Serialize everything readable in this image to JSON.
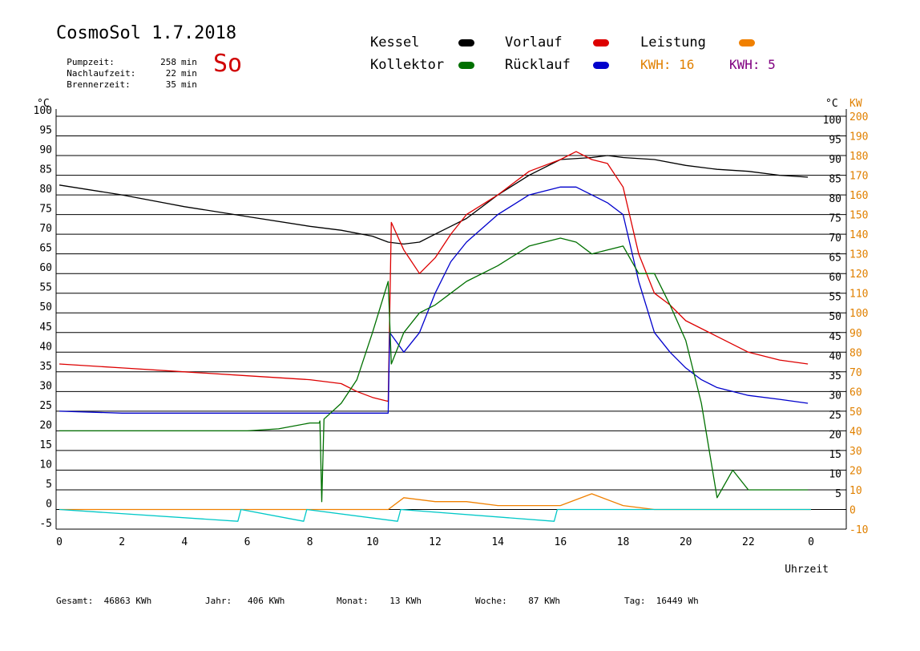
{
  "header": {
    "title": "CosmoSol 1.7.2018",
    "day": "So",
    "stats": [
      {
        "label": "Pumpzeit:",
        "value": "258",
        "unit": "min"
      },
      {
        "label": "Nachlaufzeit:",
        "value": "22",
        "unit": "min"
      },
      {
        "label": "Brennerzeit:",
        "value": "35",
        "unit": "min"
      }
    ]
  },
  "legend": {
    "kessel": {
      "label": "Kessel",
      "color": "#000000"
    },
    "vorlauf": {
      "label": "Vorlauf",
      "color": "#dd0000"
    },
    "leistung": {
      "label": "Leistung",
      "color": "#f08000"
    },
    "kollektor": {
      "label": "Kollektor",
      "color": "#007000"
    },
    "ruecklauf": {
      "label": "Rücklauf",
      "color": "#0000cc"
    },
    "kwh1": {
      "label": "KWH: 16",
      "color": "#e08000"
    },
    "kwh2": {
      "label": "KWH: 5",
      "color": "#800080"
    }
  },
  "footer": [
    {
      "label": "Gesamt:",
      "value": "46863 KWh"
    },
    {
      "label": "Jahr:",
      "value": "406 KWh"
    },
    {
      "label": "Monat:",
      "value": "13 KWh"
    },
    {
      "label": "Woche:",
      "value": "87 KWh"
    },
    {
      "label": "Tag:",
      "value": "16449 Wh"
    }
  ],
  "chart_data": {
    "type": "line",
    "title": "CosmoSol 1.7.2018",
    "xlabel": "Uhrzeit",
    "ylabel_left": "°C",
    "ylabel_right_temp": "°C",
    "ylabel_right_power": "KW",
    "xlim": [
      0,
      24
    ],
    "ylim": [
      -5,
      100
    ],
    "y2lim": [
      -10,
      200
    ],
    "x_ticks": [
      "0",
      "2",
      "4",
      "6",
      "8",
      "10",
      "12",
      "14",
      "16",
      "18",
      "20",
      "22",
      "0"
    ],
    "y_ticks_left": [
      "-5",
      "0",
      "5",
      "10",
      "15",
      "20",
      "25",
      "30",
      "35",
      "40",
      "45",
      "50",
      "55",
      "60",
      "65",
      "70",
      "75",
      "80",
      "85",
      "90",
      "95",
      "100"
    ],
    "y_ticks_right_temp": [
      "5",
      "10",
      "15",
      "20",
      "25",
      "30",
      "35",
      "40",
      "45",
      "50",
      "55",
      "60",
      "65",
      "70",
      "75",
      "80",
      "85",
      "90",
      "95",
      "100"
    ],
    "y_ticks_right_power": [
      "-10",
      "0",
      "10",
      "20",
      "30",
      "40",
      "50",
      "60",
      "70",
      "80",
      "90",
      "100",
      "110",
      "120",
      "130",
      "140",
      "150",
      "160",
      "170",
      "180",
      "190",
      "200"
    ],
    "grid": true,
    "series": [
      {
        "name": "Kessel",
        "color": "#000000",
        "x": [
          0,
          2,
          4,
          6,
          8,
          9,
          10,
          10.5,
          11,
          11.5,
          12,
          12.5,
          13,
          14,
          15,
          16,
          17,
          17.5,
          18,
          19,
          20,
          21,
          22,
          23,
          23.9
        ],
        "y": [
          82.5,
          80,
          77,
          74.5,
          72,
          71,
          69.5,
          68,
          67.5,
          68,
          70,
          72,
          74,
          80,
          85,
          89,
          89.5,
          90,
          89.5,
          89,
          87.5,
          86.5,
          86,
          85,
          84.5
        ]
      },
      {
        "name": "Vorlauf",
        "color": "#dd0000",
        "x": [
          0,
          2,
          4,
          6,
          8,
          9,
          9.5,
          10,
          10.5,
          10.6,
          11,
          11.5,
          12,
          12.5,
          13,
          14,
          15,
          16,
          16.5,
          17,
          17.5,
          18,
          18.5,
          19,
          19.5,
          20,
          21,
          22,
          23,
          23.9
        ],
        "y": [
          37,
          36,
          35,
          34,
          33,
          32,
          30,
          28.5,
          27.5,
          73,
          66,
          60,
          64,
          70,
          75,
          80,
          86,
          89,
          91,
          89,
          88,
          82,
          65,
          55,
          52,
          48,
          44,
          40,
          38,
          37
        ]
      },
      {
        "name": "Rücklauf",
        "color": "#0000cc",
        "x": [
          0,
          2,
          4,
          6,
          8,
          9,
          10,
          10.5,
          10.55,
          11,
          11.5,
          12,
          12.5,
          13,
          14,
          15,
          16,
          16.5,
          17,
          17.5,
          18,
          18.5,
          19,
          19.5,
          20,
          20.5,
          21,
          22,
          23,
          23.9
        ],
        "y": [
          25,
          24.5,
          24.5,
          24.5,
          24.5,
          24.5,
          24.5,
          24.5,
          45,
          40,
          45,
          55,
          63,
          68,
          75,
          80,
          82,
          82,
          80,
          78,
          75,
          58,
          45,
          40,
          36,
          33,
          31,
          29,
          28,
          27
        ]
      },
      {
        "name": "Kollektor",
        "color": "#007000",
        "x": [
          0,
          2,
          4,
          6,
          7,
          8,
          8.3,
          8.32,
          8.38,
          8.45,
          9,
          9.5,
          10,
          10.5,
          10.6,
          11,
          11.5,
          12,
          12.5,
          13,
          14,
          15,
          16,
          16.5,
          17,
          17.5,
          18,
          18.5,
          19,
          19.5,
          20,
          20.5,
          21,
          21.5,
          22,
          23,
          23.9
        ],
        "y": [
          20,
          20,
          20,
          20,
          20.5,
          22,
          22,
          22.5,
          2,
          23,
          27,
          33,
          45,
          58,
          37,
          45,
          50,
          52,
          55,
          58,
          62,
          67,
          69,
          68,
          65,
          66,
          67,
          60,
          60,
          52,
          43,
          27,
          3,
          10,
          5,
          5,
          5
        ]
      },
      {
        "name": "Leistung",
        "color": "#f08000",
        "x": [
          0,
          10.5,
          11,
          12,
          13,
          14,
          15,
          16,
          17,
          18,
          19,
          24
        ],
        "y": [
          0,
          0,
          3,
          2,
          2,
          1,
          1,
          1,
          4,
          1,
          0,
          0
        ]
      },
      {
        "name": "Pumpe",
        "color": "#00c8c8",
        "x": [
          0,
          5.7,
          5.8,
          7.8,
          7.9,
          10.8,
          10.9,
          15.8,
          15.9,
          24
        ],
        "y": [
          0,
          -3,
          0,
          -3,
          0,
          -3,
          0,
          -3,
          0,
          0
        ]
      }
    ]
  }
}
